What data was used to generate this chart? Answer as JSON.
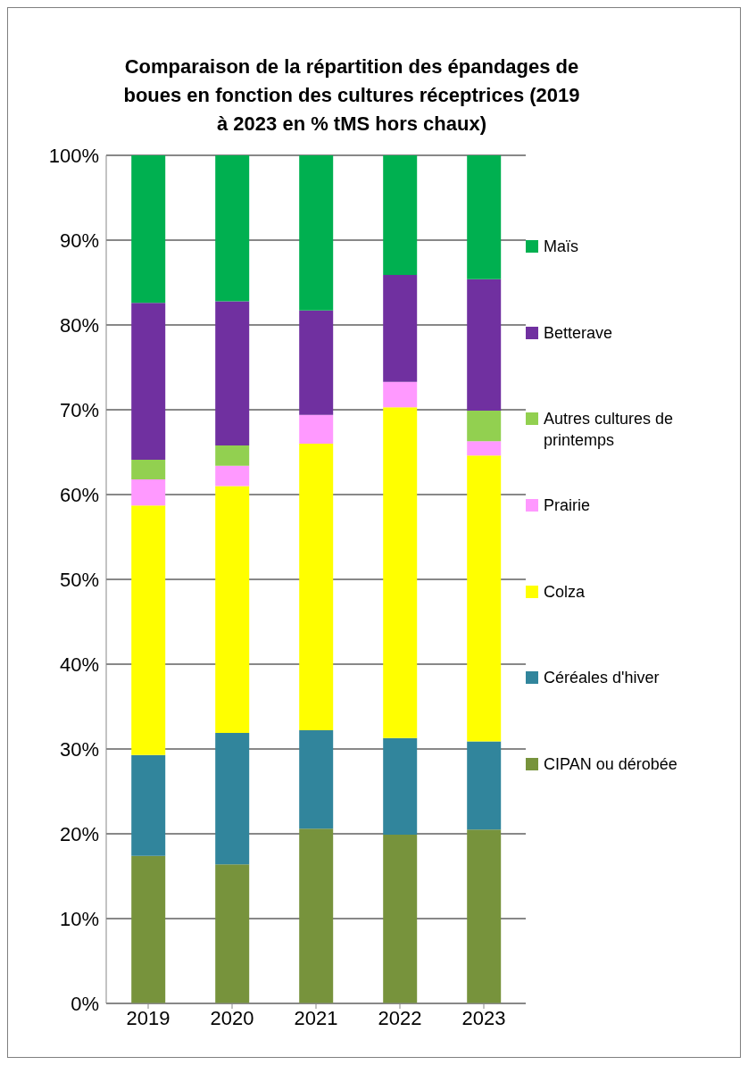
{
  "chart_data": {
    "type": "bar",
    "title": "Comparaison de la répartition des épandages de boues en fonction des cultures réceptrices (2019 à 2023 en % tMS hors chaux)",
    "categories": [
      "2019",
      "2020",
      "2021",
      "2022",
      "2023"
    ],
    "stacked": true,
    "series": [
      {
        "name": "CIPAN ou dérobée",
        "color": "#77933c",
        "values": [
          17.4,
          16.4,
          20.6,
          19.9,
          20.5
        ]
      },
      {
        "name": "Céréales d'hiver",
        "color": "#31859c",
        "values": [
          11.9,
          15.5,
          11.6,
          11.4,
          10.4
        ]
      },
      {
        "name": "Colza",
        "color": "#ffff00",
        "values": [
          29.4,
          29.1,
          33.8,
          39.0,
          33.7
        ]
      },
      {
        "name": "Prairie",
        "color": "#ff99ff",
        "values": [
          3.1,
          2.4,
          3.4,
          3.0,
          1.7
        ]
      },
      {
        "name": "Autres cultures de printemps",
        "color": "#92d050",
        "values": [
          2.3,
          2.4,
          0,
          0,
          3.6
        ]
      },
      {
        "name": "Betterave",
        "color": "#7030a0",
        "values": [
          18.5,
          17.0,
          12.3,
          12.6,
          15.5
        ]
      },
      {
        "name": "Maïs",
        "color": "#00b050",
        "values": [
          17.4,
          17.2,
          18.3,
          14.1,
          14.6
        ]
      }
    ],
    "ylim": [
      0,
      100
    ],
    "yticks": [
      {
        "value": 0,
        "label": "0%"
      },
      {
        "value": 10,
        "label": "10%"
      },
      {
        "value": 20,
        "label": "20%"
      },
      {
        "value": 30,
        "label": "30%"
      },
      {
        "value": 40,
        "label": "40%"
      },
      {
        "value": 50,
        "label": "50%"
      },
      {
        "value": 60,
        "label": "60%"
      },
      {
        "value": 70,
        "label": "70%"
      },
      {
        "value": 80,
        "label": "80%"
      },
      {
        "value": 90,
        "label": "90%"
      },
      {
        "value": 100,
        "label": "100%"
      }
    ],
    "grid": "y",
    "legend": "right"
  }
}
